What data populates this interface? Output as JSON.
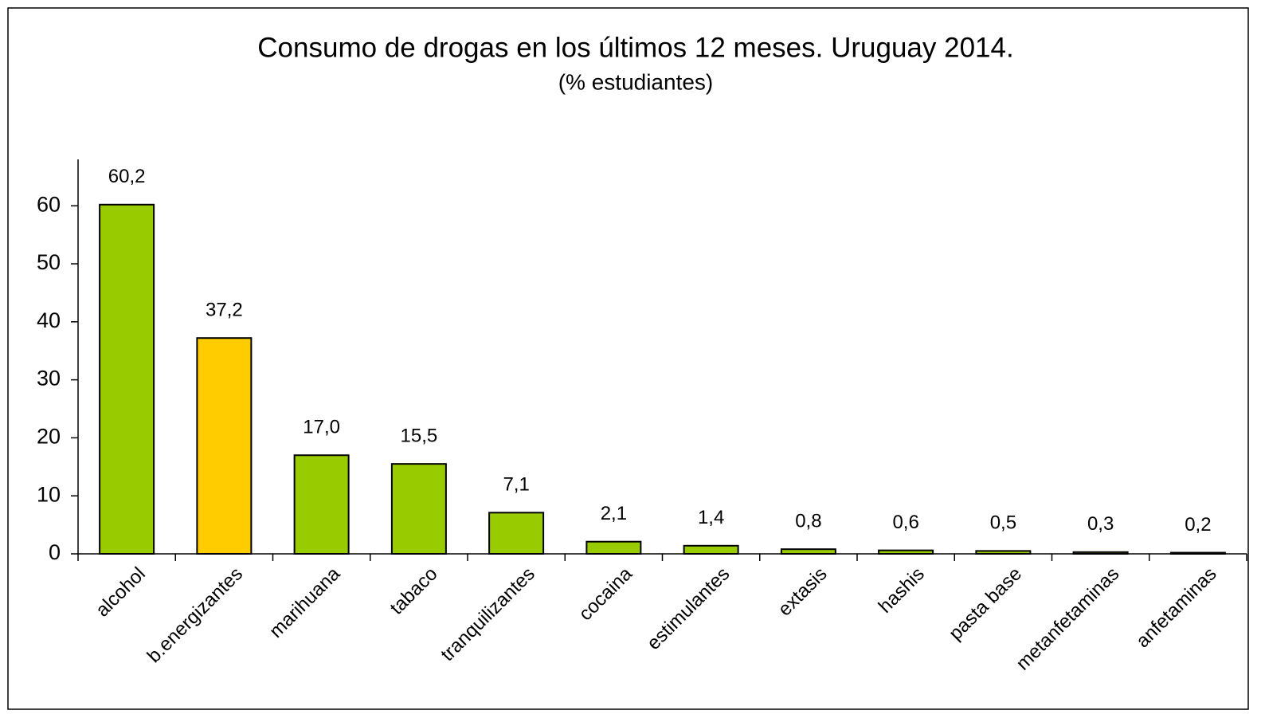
{
  "chart_data": {
    "type": "bar",
    "title": "Consumo de drogas en los últimos 12 meses. Uruguay 2014.",
    "subtitle": "(% estudiantes)",
    "categories": [
      "alcohol",
      "b.energizantes",
      "marihuana",
      "tabaco",
      "tranquilizantes",
      "cocaina",
      "estimulantes",
      "extasis",
      "hashis",
      "pasta base",
      "metanfetaminas",
      "anfetaminas"
    ],
    "values": [
      60.2,
      37.2,
      17.0,
      15.5,
      7.1,
      2.1,
      1.4,
      0.8,
      0.6,
      0.5,
      0.3,
      0.2
    ],
    "value_labels": [
      "60,2",
      "37,2",
      "17,0",
      "15,5",
      "7,1",
      "2,1",
      "1,4",
      "0,8",
      "0,6",
      "0,5",
      "0,3",
      "0,2"
    ],
    "colors": [
      "#99cc00",
      "#ffcc00",
      "#99cc00",
      "#99cc00",
      "#99cc00",
      "#99cc00",
      "#99cc00",
      "#99cc00",
      "#99cc00",
      "#99cc00",
      "#99cc00",
      "#99cc00"
    ],
    "ylim": [
      0,
      68
    ],
    "yticks": [
      0,
      10,
      20,
      30,
      40,
      50,
      60
    ],
    "grid": false
  }
}
